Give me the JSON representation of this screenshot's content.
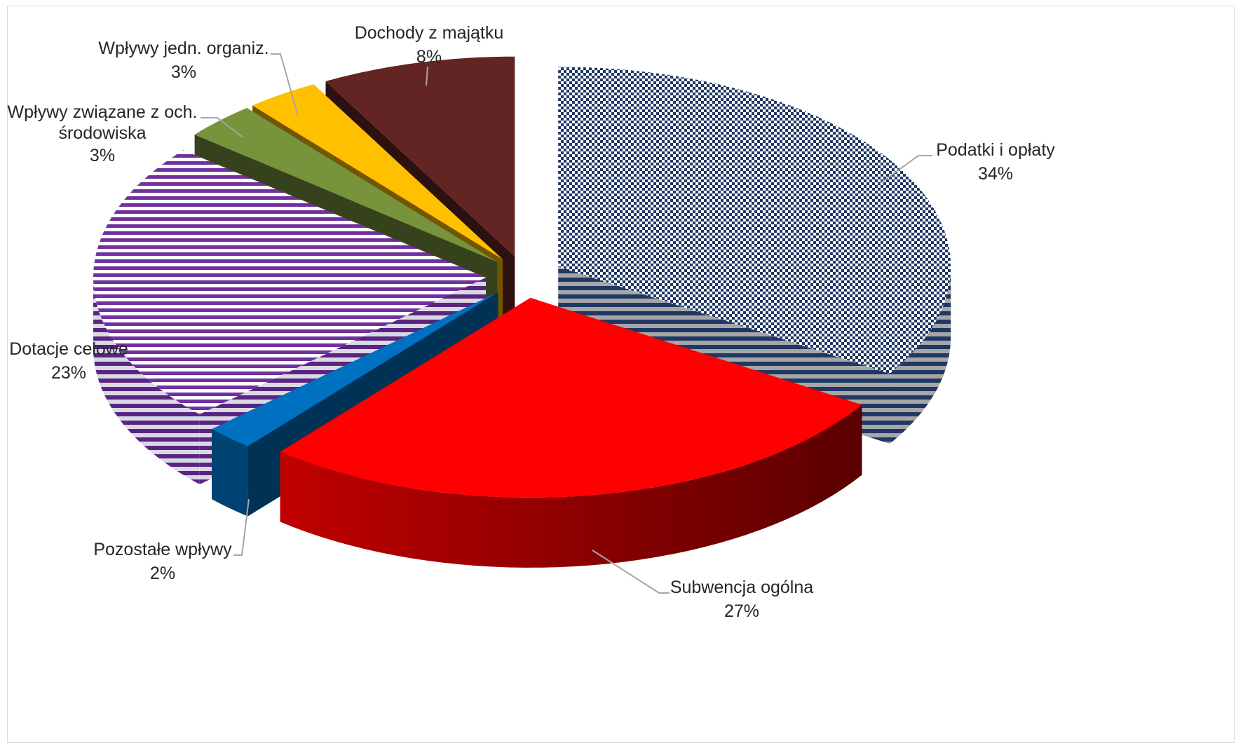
{
  "chart_data": {
    "type": "pie",
    "style": "3d-exploded",
    "slices": [
      {
        "label": "Podatki i opłaty",
        "value": 34,
        "value_label": "34%",
        "color": "#1f3864",
        "pattern": "checkerboard"
      },
      {
        "label": "Subwencja ogólna",
        "value": 27,
        "value_label": "27%",
        "color": "#ff0000",
        "pattern": "solid"
      },
      {
        "label": "Pozostałe wpływy",
        "value": 2,
        "value_label": "2%",
        "color": "#0070c0",
        "pattern": "solid"
      },
      {
        "label": "Dotacje celowe",
        "value": 23,
        "value_label": "23%",
        "color": "#7030a0",
        "pattern": "horizontal-stripes"
      },
      {
        "label": "Wpływy związane z och. środowiska",
        "label_lines": [
          "Wpływy związane z och.",
          "środowiska"
        ],
        "value": 3,
        "value_label": "3%",
        "color": "#77933c",
        "pattern": "solid"
      },
      {
        "label": "Wpływy jedn. organiz.",
        "value": 3,
        "value_label": "3%",
        "color": "#ffc000",
        "pattern": "solid"
      },
      {
        "label": "Dochody z majątku",
        "value": 8,
        "value_label": "8%",
        "color": "#632523",
        "pattern": "solid"
      }
    ],
    "title": "",
    "legend": "none",
    "data_labels": "outside-with-leader-lines"
  }
}
